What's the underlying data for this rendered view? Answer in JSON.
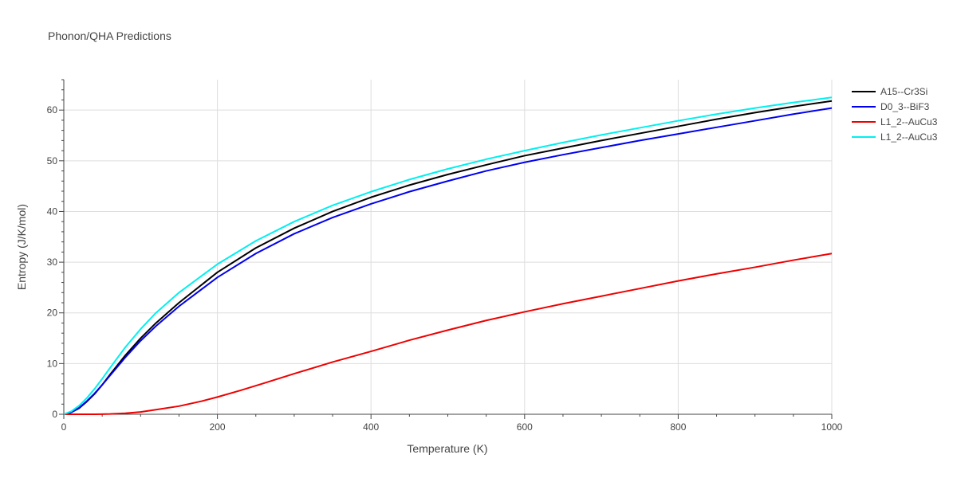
{
  "chart_data": {
    "type": "line",
    "title": "Phonon/QHA Predictions",
    "xlabel": "Temperature (K)",
    "ylabel": "Entropy (J/K/mol)",
    "xlim": [
      0,
      1000
    ],
    "ylim": [
      0,
      66
    ],
    "x_ticks": [
      0,
      200,
      400,
      600,
      800,
      1000
    ],
    "y_ticks": [
      0,
      10,
      20,
      30,
      40,
      50,
      60
    ],
    "grid": true,
    "legend_position": "right",
    "series": [
      {
        "name": "A15--Cr3Si",
        "color": "#000000",
        "x": [
          0,
          10,
          20,
          30,
          40,
          50,
          60,
          80,
          100,
          120,
          150,
          200,
          250,
          300,
          350,
          400,
          450,
          500,
          550,
          600,
          650,
          700,
          750,
          800,
          850,
          900,
          950,
          1000
        ],
        "y": [
          0,
          0.4,
          1.2,
          2.5,
          4.0,
          5.8,
          7.8,
          11.6,
          15.0,
          18.0,
          22.0,
          28.0,
          32.8,
          36.7,
          40.0,
          42.8,
          45.2,
          47.3,
          49.2,
          51.0,
          52.5,
          54.0,
          55.4,
          56.8,
          58.2,
          59.5,
          60.7,
          61.8
        ]
      },
      {
        "name": "D0_3--BiF3",
        "color": "#0000ee",
        "x": [
          0,
          10,
          20,
          30,
          40,
          50,
          60,
          80,
          100,
          120,
          150,
          200,
          250,
          300,
          350,
          400,
          450,
          500,
          550,
          600,
          650,
          700,
          750,
          800,
          850,
          900,
          950,
          1000
        ],
        "y": [
          0,
          0.4,
          1.3,
          2.6,
          4.1,
          5.8,
          7.6,
          11.2,
          14.5,
          17.4,
          21.3,
          27.0,
          31.7,
          35.6,
          38.8,
          41.5,
          43.9,
          46.0,
          48.0,
          49.7,
          51.2,
          52.6,
          54.0,
          55.3,
          56.6,
          57.9,
          59.2,
          60.4
        ]
      },
      {
        "name": "L1_2--AuCu3",
        "color": "#ee0000",
        "x": [
          0,
          20,
          40,
          60,
          80,
          100,
          120,
          150,
          180,
          200,
          230,
          260,
          300,
          350,
          400,
          450,
          500,
          550,
          600,
          650,
          700,
          750,
          800,
          850,
          900,
          950,
          1000
        ],
        "y": [
          0,
          0,
          0,
          0.05,
          0.2,
          0.45,
          0.9,
          1.6,
          2.6,
          3.4,
          4.7,
          6.1,
          8.0,
          10.3,
          12.4,
          14.6,
          16.6,
          18.5,
          20.2,
          21.8,
          23.3,
          24.8,
          26.3,
          27.7,
          29.0,
          30.4,
          31.7
        ]
      },
      {
        "name": "L1_2--AuCu3",
        "color": "#00f0f0",
        "x": [
          0,
          10,
          20,
          30,
          40,
          50,
          60,
          80,
          100,
          120,
          150,
          200,
          250,
          300,
          350,
          400,
          450,
          500,
          550,
          600,
          650,
          700,
          750,
          800,
          850,
          900,
          950,
          1000
        ],
        "y": [
          0,
          0.6,
          1.7,
          3.2,
          5.0,
          7.0,
          9.1,
          13.2,
          16.8,
          20.0,
          24.0,
          29.6,
          34.2,
          38.0,
          41.2,
          43.9,
          46.3,
          48.4,
          50.3,
          52.0,
          53.6,
          55.1,
          56.5,
          57.9,
          59.2,
          60.4,
          61.5,
          62.5
        ]
      }
    ]
  }
}
